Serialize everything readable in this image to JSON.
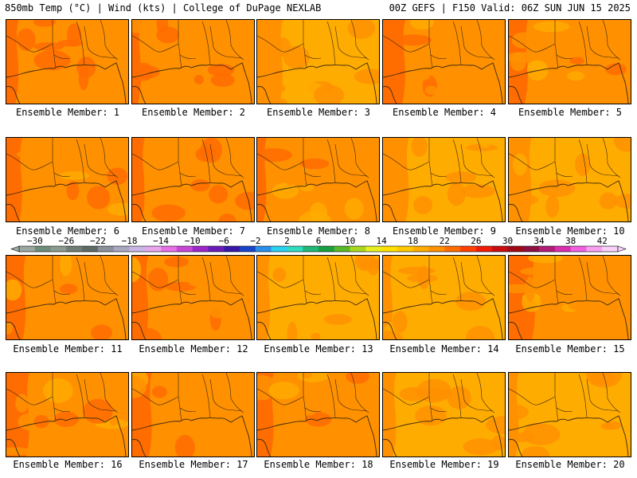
{
  "header": {
    "left": "850mb Temp (°C) | Wind (kts) | College of DuPage NEXLAB",
    "right": "00Z GEFS | F150 Valid: 06Z SUN JUN 15 2025"
  },
  "colorbar": {
    "tick_labels": [
      "-30",
      "-26",
      "-22",
      "-18",
      "-14",
      "-10",
      "-6",
      "-2",
      "2",
      "6",
      "10",
      "14",
      "18",
      "22",
      "26",
      "30",
      "34",
      "38",
      "42"
    ],
    "bins": [
      {
        "min": -32,
        "max": -30,
        "color": "#9aa8a0"
      },
      {
        "min": -30,
        "max": -28,
        "color": "#6e8c7a"
      },
      {
        "min": -28,
        "max": -26,
        "color": "#8a9a8e"
      },
      {
        "min": -26,
        "max": -24,
        "color": "#707c74"
      },
      {
        "min": -24,
        "max": -22,
        "color": "#5c6a64"
      },
      {
        "min": -22,
        "max": -20,
        "color": "#8c8f9c"
      },
      {
        "min": -20,
        "max": -18,
        "color": "#a8a8c0"
      },
      {
        "min": -18,
        "max": -16,
        "color": "#c8b6e6"
      },
      {
        "min": -16,
        "max": -14,
        "color": "#e8a6ee"
      },
      {
        "min": -14,
        "max": -12,
        "color": "#e870e6"
      },
      {
        "min": -12,
        "max": -10,
        "color": "#c846d8"
      },
      {
        "min": -10,
        "max": -8,
        "color": "#9a28c8"
      },
      {
        "min": -8,
        "max": -6,
        "color": "#6a1cb8"
      },
      {
        "min": -6,
        "max": -4,
        "color": "#3818a8"
      },
      {
        "min": -4,
        "max": -2,
        "color": "#1844c8"
      },
      {
        "min": -2,
        "max": 0,
        "color": "#2c8ee8"
      },
      {
        "min": 0,
        "max": 2,
        "color": "#2cd0f0"
      },
      {
        "min": 2,
        "max": 4,
        "color": "#30dcc0"
      },
      {
        "min": 4,
        "max": 6,
        "color": "#20b878"
      },
      {
        "min": 6,
        "max": 8,
        "color": "#18a040"
      },
      {
        "min": 8,
        "max": 10,
        "color": "#58b828"
      },
      {
        "min": 10,
        "max": 12,
        "color": "#a8d820"
      },
      {
        "min": 12,
        "max": 14,
        "color": "#e8f020"
      },
      {
        "min": 14,
        "max": 16,
        "color": "#ffe000"
      },
      {
        "min": 16,
        "max": 18,
        "color": "#ffc800"
      },
      {
        "min": 18,
        "max": 20,
        "color": "#ffac00"
      },
      {
        "min": 20,
        "max": 22,
        "color": "#ff9000"
      },
      {
        "min": 22,
        "max": 24,
        "color": "#ff6c00"
      },
      {
        "min": 24,
        "max": 26,
        "color": "#ff4000"
      },
      {
        "min": 26,
        "max": 28,
        "color": "#f01c08"
      },
      {
        "min": 28,
        "max": 30,
        "color": "#c80c10"
      },
      {
        "min": 30,
        "max": 32,
        "color": "#a00818"
      },
      {
        "min": 32,
        "max": 34,
        "color": "#8c1040"
      },
      {
        "min": 34,
        "max": 36,
        "color": "#b01c78"
      },
      {
        "min": 36,
        "max": 38,
        "color": "#d830b0"
      },
      {
        "min": 38,
        "max": 40,
        "color": "#f060e0"
      },
      {
        "min": 40,
        "max": 42,
        "color": "#f8a0f0"
      },
      {
        "min": 42,
        "max": 44,
        "color": "#f8d0f8"
      }
    ]
  },
  "panels": [
    {
      "caption": "Ensemble Member: 1",
      "mean_temp": 21
    },
    {
      "caption": "Ensemble Member: 2",
      "mean_temp": 21
    },
    {
      "caption": "Ensemble Member: 3",
      "mean_temp": 19
    },
    {
      "caption": "Ensemble Member: 4",
      "mean_temp": 20
    },
    {
      "caption": "Ensemble Member: 5",
      "mean_temp": 20
    },
    {
      "caption": "Ensemble Member: 6",
      "mean_temp": 20
    },
    {
      "caption": "Ensemble Member: 7",
      "mean_temp": 21
    },
    {
      "caption": "Ensemble Member: 8",
      "mean_temp": 20
    },
    {
      "caption": "Ensemble Member: 9",
      "mean_temp": 19
    },
    {
      "caption": "Ensemble Member: 10",
      "mean_temp": 19
    },
    {
      "caption": "Ensemble Member: 11",
      "mean_temp": 20
    },
    {
      "caption": "Ensemble Member: 12",
      "mean_temp": 20
    },
    {
      "caption": "Ensemble Member: 13",
      "mean_temp": 19
    },
    {
      "caption": "Ensemble Member: 14",
      "mean_temp": 19
    },
    {
      "caption": "Ensemble Member: 15",
      "mean_temp": 20
    },
    {
      "caption": "Ensemble Member: 16",
      "mean_temp": 20
    },
    {
      "caption": "Ensemble Member: 17",
      "mean_temp": 20
    },
    {
      "caption": "Ensemble Member: 18",
      "mean_temp": 20
    },
    {
      "caption": "Ensemble Member: 19",
      "mean_temp": 19
    },
    {
      "caption": "Ensemble Member: 20",
      "mean_temp": 19
    }
  ]
}
